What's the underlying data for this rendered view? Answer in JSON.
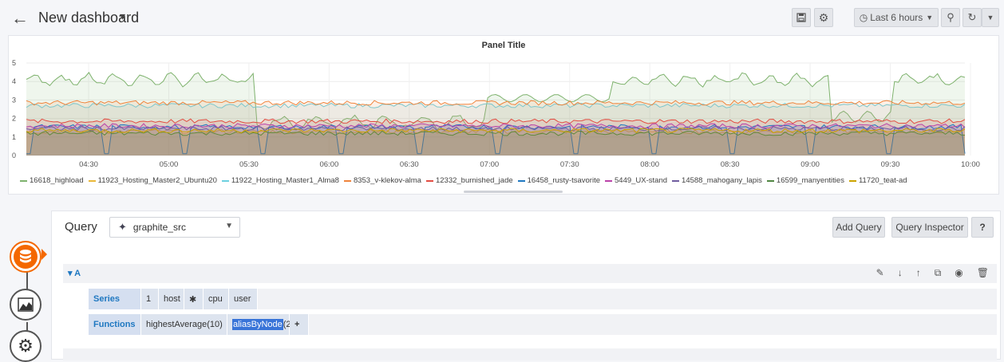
{
  "header": {
    "title": "New dashboard",
    "time_range": "Last 6 hours"
  },
  "panel": {
    "title": "Panel Title"
  },
  "chart_data": {
    "type": "line",
    "title": "Panel Title",
    "y_ticks": [
      "5",
      "4",
      "3",
      "2",
      "1",
      "0"
    ],
    "ylim": [
      0,
      5
    ],
    "x_ticks": [
      "04:30",
      "05:00",
      "05:30",
      "06:00",
      "06:30",
      "07:00",
      "07:30",
      "08:00",
      "08:30",
      "09:00",
      "09:30",
      "10:00"
    ],
    "grid": true,
    "legend_position": "bottom",
    "series": [
      {
        "name": "16618_highload",
        "color": "#7eb26d",
        "baseline": 4.2
      },
      {
        "name": "11923_Hosting_Master2_Ubuntu20",
        "color": "#eab839",
        "baseline": 1.3
      },
      {
        "name": "11922_Hosting_Master1_Alma8",
        "color": "#6ed0e0",
        "baseline": 2.7
      },
      {
        "name": "8353_v-klekov-alma",
        "color": "#ef843c",
        "baseline": 2.85
      },
      {
        "name": "12332_burnished_jade",
        "color": "#e24d42",
        "baseline": 1.85
      },
      {
        "name": "16458_rusty-tsavorite",
        "color": "#1f78c1",
        "baseline": 1.55
      },
      {
        "name": "5449_UX-stand",
        "color": "#ba43a9",
        "baseline": 1.6
      },
      {
        "name": "14588_mahogany_lapis",
        "color": "#705da0",
        "baseline": 1.45
      },
      {
        "name": "16599_manyentities",
        "color": "#508642",
        "baseline": 1.2
      },
      {
        "name": "11720_teat-ad",
        "color": "#cca300",
        "baseline": 1.35
      }
    ]
  },
  "editor": {
    "query_label": "Query",
    "datasource": "graphite_src",
    "add_query": "Add Query",
    "query_inspector": "Query Inspector",
    "help": "?",
    "row_label": "A",
    "series_key": "Series",
    "series_segments": [
      "1",
      "host",
      "✱",
      "cpu",
      "user"
    ],
    "functions_key": "Functions",
    "func_1": "highestAverage(10)",
    "func_2_name": "aliasByNode",
    "func_2_args": "(2)",
    "add_func": "+"
  }
}
